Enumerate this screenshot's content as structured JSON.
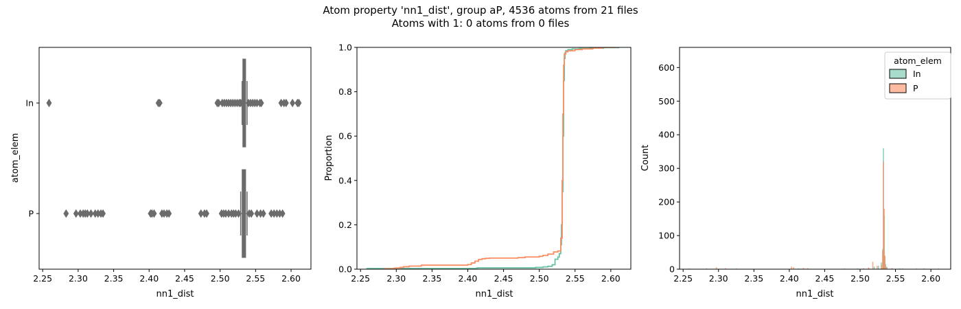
{
  "figure": {
    "title_line1": "Atom property 'nn1_dist', group aP, 4536 atoms from 21 files",
    "title_line2": "Atoms with 1: 0 atoms from 0 files"
  },
  "colors": {
    "In": "#66c2a5",
    "P": "#fc8d62",
    "box": "#6b6b6b"
  },
  "chart_data": [
    {
      "type": "box",
      "xlabel": "nn1_dist",
      "ylabel": "atom_elem",
      "xlim": [
        2.245,
        2.628
      ],
      "xticks": [
        2.25,
        2.3,
        2.35,
        2.4,
        2.45,
        2.5,
        2.55,
        2.6
      ],
      "xtick_labels": [
        "2.25",
        "2.30",
        "2.35",
        "2.40",
        "2.45",
        "2.50",
        "2.55",
        "2.60"
      ],
      "categories": [
        "In",
        "P"
      ],
      "series": [
        {
          "category": "In",
          "q1": 2.532,
          "median": 2.534,
          "q3": 2.536,
          "whisker_low": 2.531,
          "whisker_high": 2.538,
          "outliers": [
            2.259,
            2.413,
            2.415,
            2.496,
            2.498,
            2.503,
            2.506,
            2.509,
            2.512,
            2.515,
            2.518,
            2.521,
            2.524,
            2.527,
            2.529,
            2.54,
            2.543,
            2.546,
            2.549,
            2.552,
            2.556,
            2.558,
            2.586,
            2.59,
            2.593,
            2.602,
            2.609,
            2.611
          ]
        },
        {
          "category": "P",
          "q1": 2.531,
          "median": 2.534,
          "q3": 2.536,
          "whisker_low": 2.529,
          "whisker_high": 2.538,
          "outliers": [
            2.283,
            2.297,
            2.303,
            2.307,
            2.31,
            2.313,
            2.318,
            2.324,
            2.328,
            2.332,
            2.335,
            2.402,
            2.404,
            2.407,
            2.418,
            2.421,
            2.425,
            2.428,
            2.473,
            2.478,
            2.481,
            2.502,
            2.505,
            2.508,
            2.512,
            2.516,
            2.519,
            2.522,
            2.526,
            2.541,
            2.544,
            2.552,
            2.557,
            2.561,
            2.572,
            2.576,
            2.58,
            2.584,
            2.588
          ]
        }
      ]
    },
    {
      "type": "line",
      "subtype": "ecdf",
      "xlabel": "nn1_dist",
      "ylabel": "Proportion",
      "xlim": [
        2.245,
        2.628
      ],
      "ylim": [
        0,
        1.0
      ],
      "xticks": [
        2.25,
        2.3,
        2.35,
        2.4,
        2.45,
        2.5,
        2.55,
        2.6
      ],
      "xtick_labels": [
        "2.25",
        "2.30",
        "2.35",
        "2.40",
        "2.45",
        "2.50",
        "2.55",
        "2.60"
      ],
      "yticks": [
        0.0,
        0.2,
        0.4,
        0.6,
        0.8,
        1.0
      ],
      "ytick_labels": [
        "0.0",
        "0.2",
        "0.4",
        "0.6",
        "0.8",
        "1.0"
      ],
      "series": [
        {
          "name": "In",
          "x": [
            2.259,
            2.412,
            2.414,
            2.495,
            2.505,
            2.512,
            2.518,
            2.522,
            2.526,
            2.528,
            2.53,
            2.531,
            2.532,
            2.533,
            2.534,
            2.535,
            2.536,
            2.537,
            2.54,
            2.546,
            2.556,
            2.57,
            2.59,
            2.611
          ],
          "y": [
            0.003,
            0.005,
            0.006,
            0.008,
            0.01,
            0.013,
            0.02,
            0.045,
            0.055,
            0.07,
            0.11,
            0.2,
            0.35,
            0.6,
            0.85,
            0.95,
            0.975,
            0.985,
            0.99,
            0.993,
            0.995,
            0.997,
            0.999,
            1.0
          ]
        },
        {
          "name": "P",
          "x": [
            2.283,
            2.297,
            2.305,
            2.31,
            2.318,
            2.335,
            2.4,
            2.405,
            2.41,
            2.415,
            2.42,
            2.425,
            2.43,
            2.47,
            2.48,
            2.5,
            2.505,
            2.512,
            2.52,
            2.526,
            2.53,
            2.532,
            2.533,
            2.534,
            2.535,
            2.537,
            2.54,
            2.55,
            2.56,
            2.575,
            2.588
          ],
          "y": [
            0.002,
            0.005,
            0.008,
            0.011,
            0.014,
            0.018,
            0.021,
            0.028,
            0.036,
            0.044,
            0.047,
            0.049,
            0.05,
            0.052,
            0.055,
            0.058,
            0.062,
            0.068,
            0.078,
            0.082,
            0.14,
            0.4,
            0.7,
            0.92,
            0.97,
            0.98,
            0.985,
            0.99,
            0.993,
            0.997,
            1.0
          ]
        }
      ]
    },
    {
      "type": "bar",
      "subtype": "histogram",
      "xlabel": "nn1_dist",
      "ylabel": "Count",
      "xlim": [
        2.245,
        2.628
      ],
      "ylim": [
        0,
        660
      ],
      "xticks": [
        2.25,
        2.3,
        2.35,
        2.4,
        2.45,
        2.5,
        2.55,
        2.6
      ],
      "xtick_labels": [
        "2.25",
        "2.30",
        "2.35",
        "2.40",
        "2.45",
        "2.50",
        "2.55",
        "2.60"
      ],
      "yticks": [
        0,
        100,
        200,
        300,
        400,
        500,
        600
      ],
      "ytick_labels": [
        "0",
        "100",
        "200",
        "300",
        "400",
        "500",
        "600"
      ],
      "legend": {
        "title": "atom_elem",
        "placement": "top-right",
        "entries": [
          "In",
          "P"
        ]
      },
      "series": [
        {
          "name": "In",
          "x": [
            2.259,
            2.413,
            2.496,
            2.512,
            2.52,
            2.526,
            2.53,
            2.532,
            2.533,
            2.534,
            2.535,
            2.536,
            2.538,
            2.545,
            2.556,
            2.59,
            2.611
          ],
          "y": [
            2,
            2,
            2,
            3,
            8,
            10,
            20,
            60,
            360,
            160,
            40,
            15,
            6,
            3,
            2,
            2,
            2
          ]
        },
        {
          "name": "P",
          "x": [
            2.283,
            2.297,
            2.31,
            2.325,
            2.403,
            2.406,
            2.42,
            2.426,
            2.478,
            2.505,
            2.512,
            2.518,
            2.524,
            2.53,
            2.532,
            2.533,
            2.534,
            2.535,
            2.537,
            2.545,
            2.56,
            2.58
          ],
          "y": [
            2,
            6,
            3,
            2,
            8,
            6,
            4,
            3,
            2,
            3,
            5,
            22,
            10,
            12,
            55,
            320,
            180,
            40,
            8,
            3,
            2,
            2
          ]
        }
      ]
    }
  ]
}
